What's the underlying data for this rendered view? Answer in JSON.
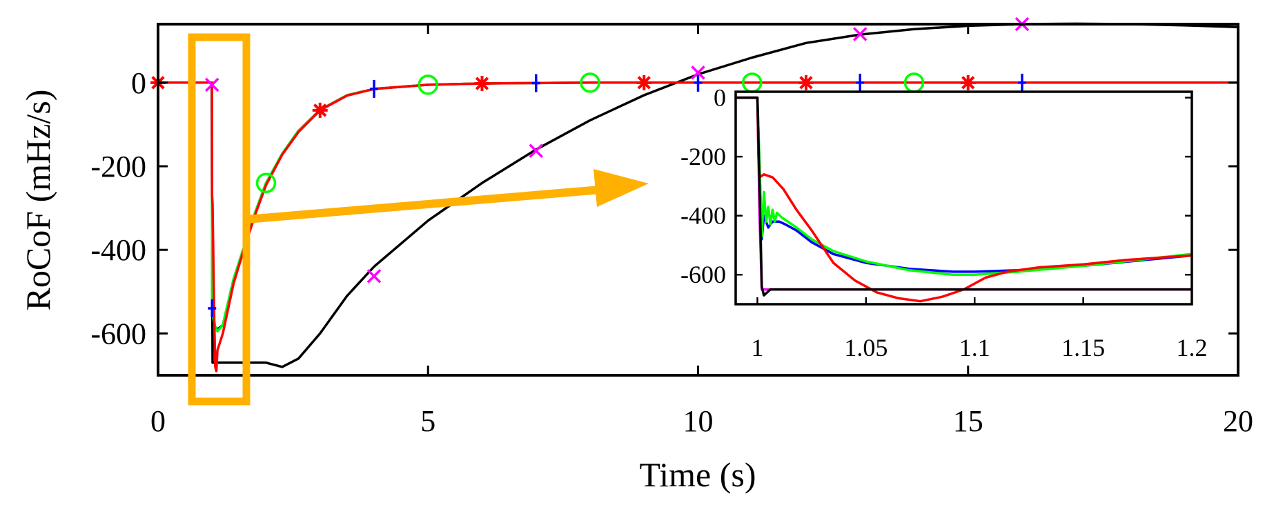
{
  "chart_data": [
    {
      "id": "main",
      "type": "line",
      "title": "",
      "xlabel": "Time (s)",
      "ylabel": "RoCoF (mHz/s)",
      "xlim": [
        0,
        20
      ],
      "ylim": [
        -700,
        140
      ],
      "xticks": [
        0,
        5,
        10,
        15,
        20
      ],
      "xtick_labels": [
        "0",
        "5",
        "10",
        "15",
        "20"
      ],
      "yticks": [
        0,
        -200,
        -400,
        -600
      ],
      "ytick_labels": [
        "0",
        "-200",
        "-400",
        "-600"
      ],
      "grid": false,
      "series": [
        {
          "name": "blue",
          "color": "#0000ff",
          "marker": "plus",
          "marker_x": [
            1,
            4,
            7,
            10,
            13,
            16
          ],
          "x": [
            0,
            0.999,
            1.0,
            1.02,
            1.06,
            1.1,
            1.2,
            1.4,
            1.6,
            1.8,
            2.0,
            2.3,
            2.6,
            3.0,
            3.5,
            4.0,
            5.0,
            6.0,
            8.0,
            10.0,
            20.0
          ],
          "y": [
            0,
            0,
            -540,
            -560,
            -585,
            -590,
            -580,
            -470,
            -390,
            -310,
            -240,
            -170,
            -115,
            -65,
            -30,
            -15,
            -5,
            -2,
            0,
            0,
            0
          ]
        },
        {
          "name": "green",
          "color": "#00ff00",
          "marker": "circle",
          "marker_x": [
            2,
            5,
            8,
            11,
            14
          ],
          "x": [
            0,
            0.999,
            1.0,
            1.02,
            1.06,
            1.1,
            1.2,
            1.4,
            1.6,
            1.8,
            2.0,
            2.3,
            2.6,
            3.0,
            3.5,
            4.0,
            5.0,
            6.0,
            8.0,
            10.0,
            20.0
          ],
          "y": [
            0,
            0,
            -540,
            -560,
            -585,
            -595,
            -580,
            -470,
            -390,
            -310,
            -240,
            -170,
            -115,
            -65,
            -30,
            -15,
            -5,
            -2,
            0,
            0,
            0
          ]
        },
        {
          "name": "red",
          "color": "#ff0000",
          "marker": "star",
          "marker_x": [
            0,
            3,
            6,
            9,
            12,
            15
          ],
          "x": [
            0,
            0.999,
            1.0,
            1.01,
            1.04,
            1.06,
            1.08,
            1.1,
            1.2,
            1.4,
            1.6,
            1.8,
            2.0,
            2.3,
            2.6,
            3.0,
            3.5,
            4.0,
            5.0,
            6.0,
            8.0,
            10.0,
            20.0
          ],
          "y": [
            0,
            0,
            -270,
            -290,
            -560,
            -680,
            -690,
            -640,
            -600,
            -480,
            -395,
            -315,
            -245,
            -172,
            -118,
            -66,
            -31,
            -15,
            -5,
            -2,
            0,
            0,
            0
          ]
        },
        {
          "name": "black",
          "color": "#000000",
          "marker": "none",
          "marker_x": [],
          "x": [
            0,
            0.995,
            1.0,
            1.01,
            1.2,
            2.0,
            2.3,
            2.6,
            3.0,
            3.5,
            4.0,
            5.0,
            6.0,
            7.0,
            8.0,
            9.0,
            10.0,
            11.0,
            12.0,
            13.0,
            14.0,
            15.0,
            16.0,
            17.0,
            18.0,
            19.0,
            20.0
          ],
          "y": [
            0,
            0,
            -400,
            -670,
            -670,
            -670,
            -680,
            -660,
            -600,
            -510,
            -440,
            -330,
            -240,
            -160,
            -90,
            -30,
            20,
            60,
            95,
            115,
            128,
            136,
            140,
            141,
            140,
            137,
            133
          ]
        },
        {
          "name": "magenta",
          "color": "#ff00ff",
          "marker": "cross",
          "marker_x": [
            1,
            4,
            7,
            10,
            13,
            16
          ],
          "x": [
            1,
            4,
            7,
            10,
            13,
            16
          ],
          "y": [
            -5,
            -463,
            -163,
            24,
            116,
            140
          ]
        }
      ]
    },
    {
      "id": "inset",
      "type": "line",
      "title": "",
      "xlabel": "",
      "ylabel": "",
      "xlim": [
        0.99,
        1.2
      ],
      "ylim": [
        -700,
        20
      ],
      "xticks": [
        1,
        1.05,
        1.1,
        1.15,
        1.2
      ],
      "xtick_labels": [
        "1",
        "1.05",
        "1.1",
        "1.15",
        "1.2"
      ],
      "yticks": [
        0,
        -200,
        -400,
        -600
      ],
      "ytick_labels": [
        "0",
        "-200",
        "-400",
        "-600"
      ],
      "grid": false,
      "series": [
        {
          "name": "magenta",
          "color": "#ff00ff",
          "x": [
            0.99,
            1.0,
            1.001,
            1.002,
            1.2
          ],
          "y": [
            0,
            0,
            -400,
            -650,
            -650
          ]
        },
        {
          "name": "blue",
          "color": "#0000ff",
          "x": [
            0.99,
            1.0,
            1.002,
            1.003,
            1.005,
            1.007,
            1.01,
            1.013,
            1.018,
            1.025,
            1.035,
            1.05,
            1.07,
            1.09,
            1.1,
            1.12,
            1.15,
            1.2
          ],
          "y": [
            0,
            0,
            -480,
            -400,
            -440,
            -420,
            -420,
            -430,
            -450,
            -490,
            -530,
            -560,
            -580,
            -590,
            -590,
            -585,
            -570,
            -535
          ]
        },
        {
          "name": "green",
          "color": "#00ff00",
          "x": [
            0.99,
            1.0,
            1.002,
            1.003,
            1.004,
            1.005,
            1.006,
            1.007,
            1.008,
            1.009,
            1.011,
            1.013,
            1.018,
            1.025,
            1.035,
            1.05,
            1.07,
            1.09,
            1.1,
            1.12,
            1.15,
            1.2
          ],
          "y": [
            0,
            0,
            -470,
            -320,
            -420,
            -370,
            -430,
            -380,
            -420,
            -390,
            -405,
            -415,
            -440,
            -480,
            -520,
            -555,
            -585,
            -600,
            -600,
            -590,
            -570,
            -530
          ]
        },
        {
          "name": "red",
          "color": "#ff00ff00",
          "x": [
            0.99,
            1.0,
            1.0005,
            1.001,
            1.003,
            1.007,
            1.012,
            1.018,
            1.025,
            1.035,
            1.045,
            1.055,
            1.065,
            1.075,
            1.085,
            1.095,
            1.105,
            1.115,
            1.13,
            1.15,
            1.17,
            1.2
          ],
          "y": [
            0,
            0,
            -200,
            -270,
            -260,
            -270,
            -310,
            -380,
            -450,
            -560,
            -620,
            -660,
            -680,
            -690,
            -675,
            -650,
            -610,
            -590,
            -575,
            -565,
            -550,
            -535
          ]
        },
        {
          "name": "black",
          "color": "#000000",
          "x": [
            0.99,
            1.0,
            1.001,
            1.002,
            1.003,
            1.006,
            1.2
          ],
          "y": [
            0,
            0,
            -300,
            -640,
            -670,
            -650,
            -650
          ]
        }
      ]
    }
  ],
  "annotation": {
    "highlight_color": "#ffb000",
    "highlight_range_x": [
      0.7,
      1.55
    ],
    "highlight_range_y": [
      -700,
      140
    ]
  }
}
